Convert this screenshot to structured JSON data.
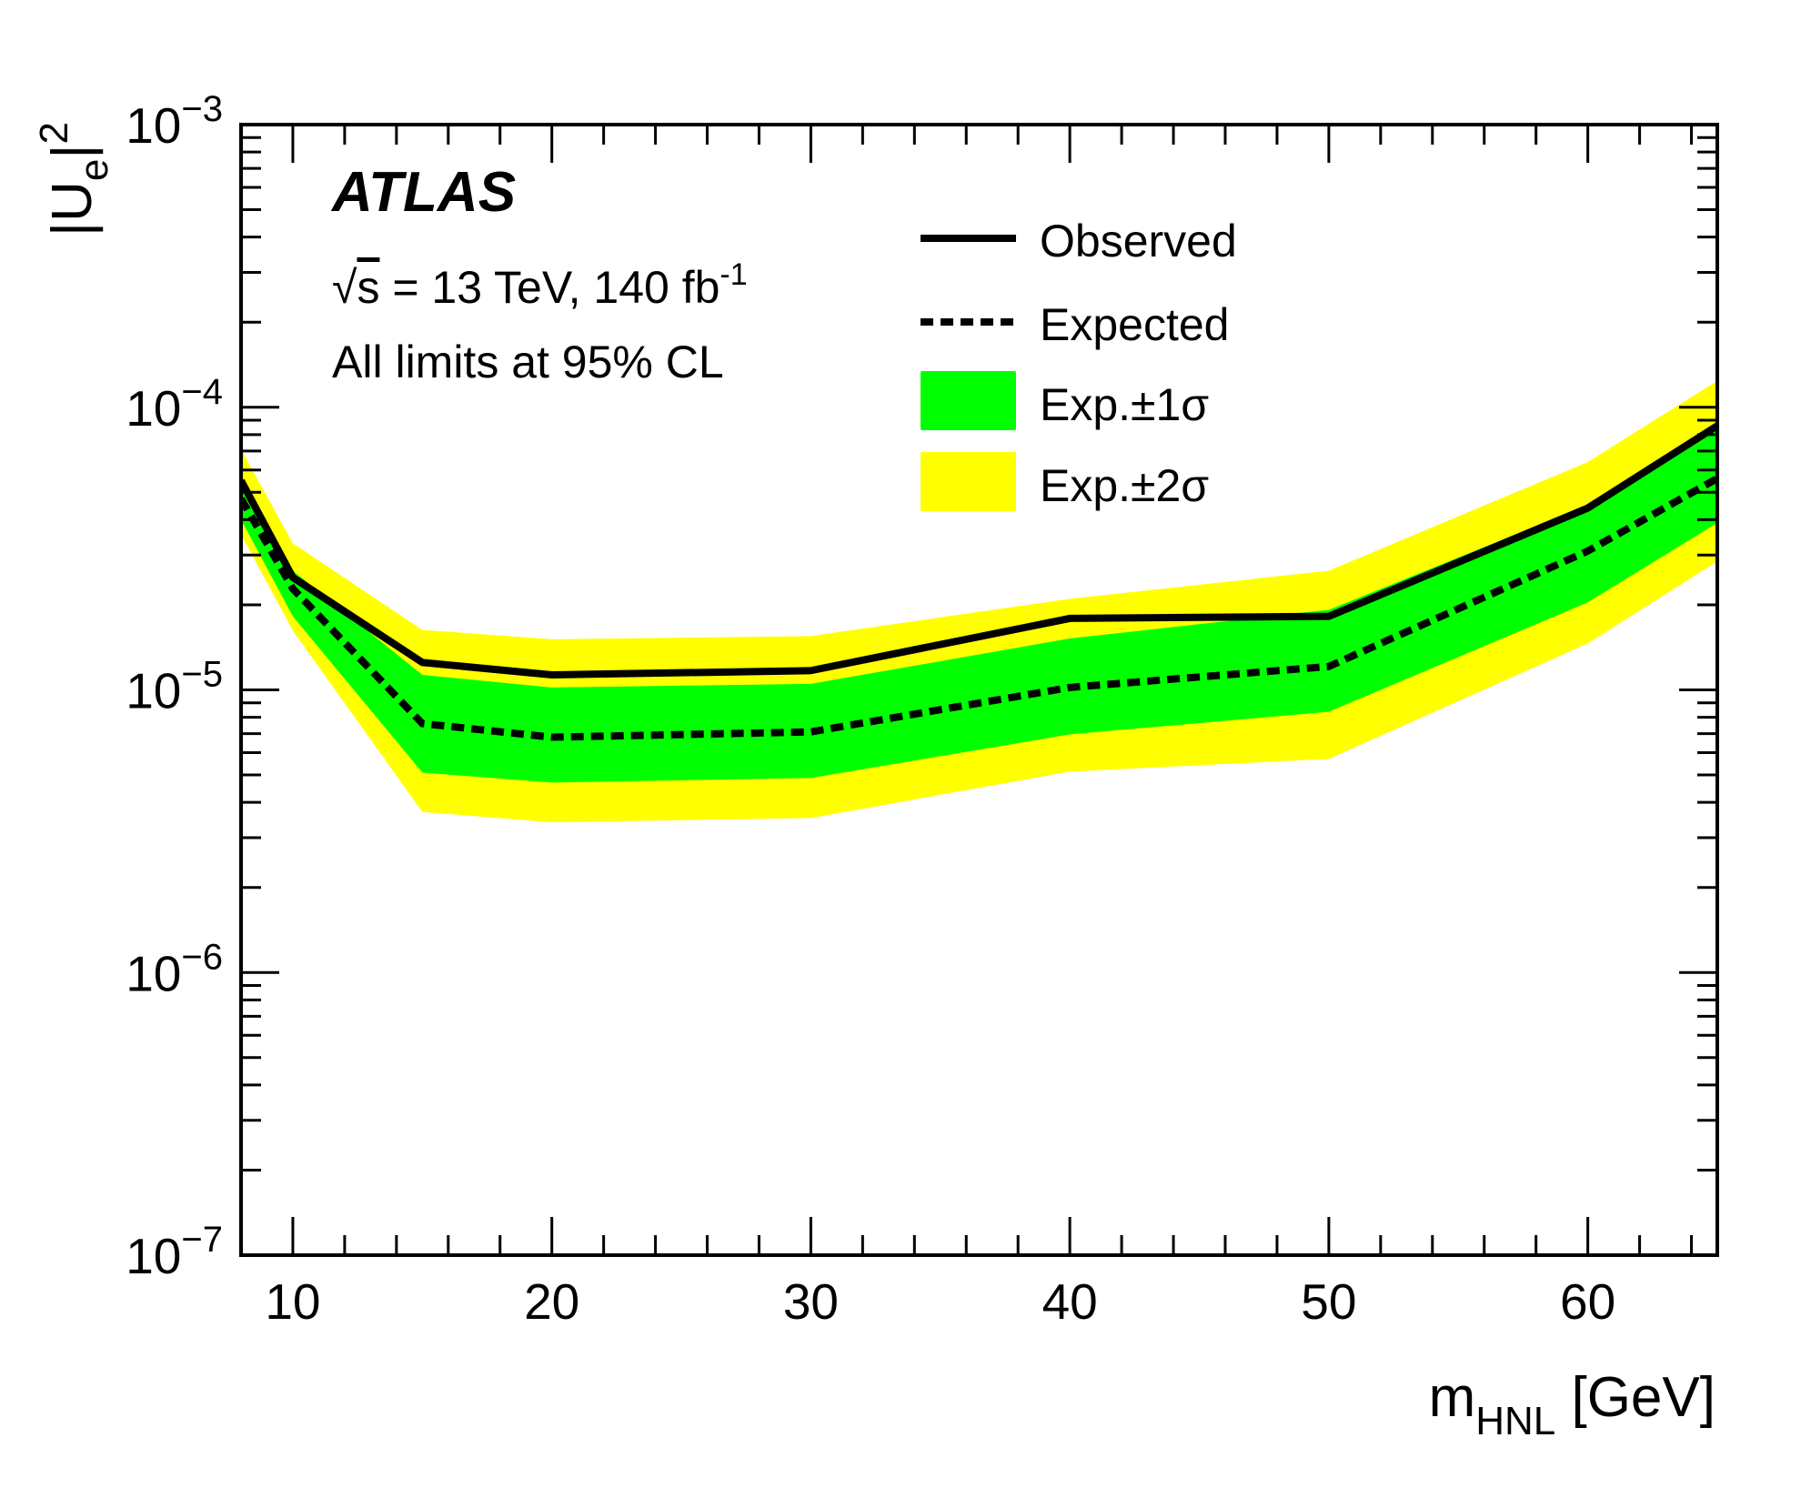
{
  "chart_data": {
    "type": "line",
    "title": "",
    "experiment_label": "ATLAS",
    "annotations": [
      {
        "name": "energy-lumi",
        "parts": {
          "sqrt": "√",
          "s": "s",
          "rest": " = 13 TeV, 140 fb",
          "sup": "-1"
        }
      },
      {
        "name": "cl-note",
        "text": "All limits at 95% CL"
      }
    ],
    "xlabel": {
      "main": "m",
      "sub": "HNL",
      "unit": " [GeV]"
    },
    "ylabel": {
      "main": "|U",
      "sub": "e",
      "close": "|",
      "sup": "2"
    },
    "xlim": [
      8,
      65
    ],
    "ylim": [
      1e-07,
      0.001
    ],
    "yscale": "log",
    "x_ticks": [
      10,
      20,
      30,
      40,
      50,
      60
    ],
    "x_tick_labels": [
      "10",
      "20",
      "30",
      "40",
      "50",
      "60"
    ],
    "y_ticks": [
      {
        "value": 0.001,
        "base": "10",
        "exp": "−3"
      },
      {
        "value": 0.0001,
        "base": "10",
        "exp": "−4"
      },
      {
        "value": 1e-05,
        "base": "10",
        "exp": "−5"
      },
      {
        "value": 1e-06,
        "base": "10",
        "exp": "−6"
      },
      {
        "value": 1e-07,
        "base": "10",
        "exp": "−7"
      }
    ],
    "x": [
      8,
      10,
      15,
      20,
      30,
      40,
      50,
      60,
      65
    ],
    "series": [
      {
        "name": "Observed",
        "style": "solid",
        "color": "#000000",
        "values": [
          5.5e-05,
          2.5e-05,
          1.25e-05,
          1.13e-05,
          1.17e-05,
          1.79e-05,
          1.82e-05,
          4.4e-05,
          8.6e-05
        ]
      },
      {
        "name": "Expected",
        "style": "dashed",
        "color": "#000000",
        "values": [
          4.75e-05,
          2.28e-05,
          7.6e-06,
          6.8e-06,
          7.1e-06,
          1.02e-05,
          1.21e-05,
          3.1e-05,
          5.6e-05
        ]
      }
    ],
    "bands": [
      {
        "name": "Exp. ±2σ",
        "color": "#ffff00",
        "upper": [
          7.1e-05,
          3.3e-05,
          1.63e-05,
          1.51e-05,
          1.55e-05,
          2.1e-05,
          2.64e-05,
          6.4e-05,
          0.000124
        ],
        "lower": [
          3.55e-05,
          1.62e-05,
          3.7e-06,
          3.4e-06,
          3.52e-06,
          5.14e-06,
          5.7e-06,
          1.46e-05,
          2.85e-05
        ]
      },
      {
        "name": "Exp. ±1σ",
        "color": "#00ff00",
        "upper": [
          5.7e-05,
          2.64e-05,
          1.13e-05,
          1.02e-05,
          1.05e-05,
          1.52e-05,
          1.92e-05,
          4.5e-05,
          8.5e-05
        ],
        "lower": [
          4e-05,
          1.82e-05,
          5.1e-06,
          4.7e-06,
          4.88e-06,
          6.96e-06,
          8.37e-06,
          2.04e-05,
          3.9e-05
        ]
      }
    ],
    "legend": {
      "placement": "top-right",
      "entries": [
        {
          "label": "Observed",
          "kind": "line-solid"
        },
        {
          "label": "Expected",
          "kind": "line-dashed"
        },
        {
          "label": "Exp.±1σ",
          "kind": "fill",
          "color": "#00ff00"
        },
        {
          "label": "Exp.±2σ",
          "kind": "fill",
          "color": "#ffff00"
        }
      ]
    },
    "grid": false
  }
}
